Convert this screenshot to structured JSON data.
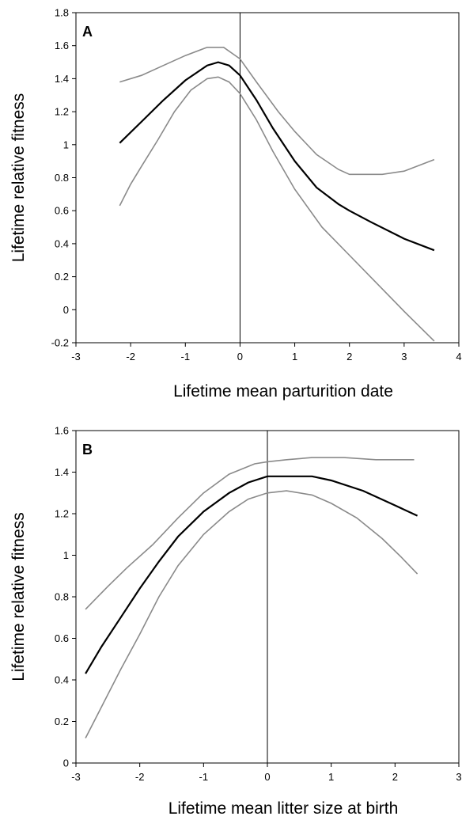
{
  "chart_data": [
    {
      "type": "line",
      "panel_label": "A",
      "xlabel": "Lifetime mean parturition date",
      "ylabel": "Lifetime relative fitness",
      "xlim": [
        -3,
        4
      ],
      "ylim": [
        -0.2,
        1.8
      ],
      "xticks": [
        "-3",
        "-2",
        "-1",
        "0",
        "1",
        "2",
        "3",
        "4"
      ],
      "yticks": [
        "-0.2",
        "0",
        "0.2",
        "0.4",
        "0.6",
        "0.8",
        "1",
        "1.2",
        "1.4",
        "1.6",
        "1.8"
      ],
      "vline_x": 0,
      "grid": false,
      "legend": "none",
      "series_colors": [
        "#8a8a8a",
        "#000000",
        "#8a8a8a"
      ],
      "series": [
        {
          "role": "upper-ci",
          "x": [
            -2.2,
            -1.8,
            -1.4,
            -1.0,
            -0.6,
            -0.3,
            0.0,
            0.3,
            0.7,
            1.0,
            1.4,
            1.8,
            2.0,
            2.3,
            2.6,
            3.0,
            3.55
          ],
          "y": [
            1.38,
            1.42,
            1.48,
            1.54,
            1.59,
            1.59,
            1.52,
            1.38,
            1.2,
            1.08,
            0.94,
            0.85,
            0.82,
            0.82,
            0.82,
            0.84,
            0.91
          ]
        },
        {
          "role": "fitted",
          "x": [
            -2.2,
            -1.8,
            -1.4,
            -1.0,
            -0.6,
            -0.4,
            -0.2,
            0.0,
            0.3,
            0.6,
            1.0,
            1.4,
            1.8,
            2.0,
            2.4,
            3.0,
            3.55
          ],
          "y": [
            1.01,
            1.14,
            1.27,
            1.39,
            1.48,
            1.5,
            1.48,
            1.42,
            1.27,
            1.1,
            0.9,
            0.74,
            0.64,
            0.6,
            0.53,
            0.43,
            0.36
          ]
        },
        {
          "role": "lower-ci",
          "x": [
            -2.2,
            -2.0,
            -1.8,
            -1.5,
            -1.2,
            -0.9,
            -0.6,
            -0.4,
            -0.2,
            0.0,
            0.3,
            0.6,
            1.0,
            1.5,
            2.0,
            2.5,
            3.0,
            3.55
          ],
          "y": [
            0.63,
            0.76,
            0.87,
            1.03,
            1.2,
            1.33,
            1.4,
            1.41,
            1.38,
            1.31,
            1.15,
            0.96,
            0.73,
            0.5,
            0.33,
            0.16,
            -0.01,
            -0.19
          ]
        }
      ]
    },
    {
      "type": "line",
      "panel_label": "B",
      "xlabel": "Lifetime mean litter size at birth",
      "ylabel": "Lifetime relative fitness",
      "xlim": [
        -3,
        3
      ],
      "ylim": [
        0,
        1.6
      ],
      "xticks": [
        "-3",
        "-2",
        "-1",
        "0",
        "1",
        "2",
        "3"
      ],
      "yticks": [
        "0",
        "0.2",
        "0.4",
        "0.6",
        "0.8",
        "1",
        "1.2",
        "1.4",
        "1.6"
      ],
      "vline_x": 0,
      "grid": false,
      "legend": "none",
      "series_colors": [
        "#8a8a8a",
        "#000000",
        "#8a8a8a"
      ],
      "series": [
        {
          "role": "upper-ci",
          "x": [
            -2.85,
            -2.5,
            -2.2,
            -1.8,
            -1.4,
            -1.0,
            -0.6,
            -0.2,
            0.0,
            0.3,
            0.7,
            1.2,
            1.7,
            2.3
          ],
          "y": [
            0.74,
            0.85,
            0.94,
            1.05,
            1.18,
            1.3,
            1.39,
            1.44,
            1.45,
            1.46,
            1.47,
            1.47,
            1.46,
            1.46
          ]
        },
        {
          "role": "fitted",
          "x": [
            -2.85,
            -2.6,
            -2.3,
            -2.0,
            -1.7,
            -1.4,
            -1.0,
            -0.6,
            -0.3,
            0.0,
            0.3,
            0.7,
            1.0,
            1.5,
            2.0,
            2.35
          ],
          "y": [
            0.43,
            0.56,
            0.7,
            0.84,
            0.97,
            1.09,
            1.21,
            1.3,
            1.35,
            1.38,
            1.38,
            1.38,
            1.36,
            1.31,
            1.24,
            1.19
          ]
        },
        {
          "role": "lower-ci",
          "x": [
            -2.85,
            -2.6,
            -2.3,
            -2.0,
            -1.7,
            -1.4,
            -1.0,
            -0.6,
            -0.3,
            0.0,
            0.3,
            0.7,
            1.0,
            1.4,
            1.8,
            2.1,
            2.35
          ],
          "y": [
            0.12,
            0.27,
            0.45,
            0.62,
            0.8,
            0.95,
            1.1,
            1.21,
            1.27,
            1.3,
            1.31,
            1.29,
            1.25,
            1.18,
            1.08,
            0.99,
            0.91
          ]
        }
      ]
    }
  ]
}
